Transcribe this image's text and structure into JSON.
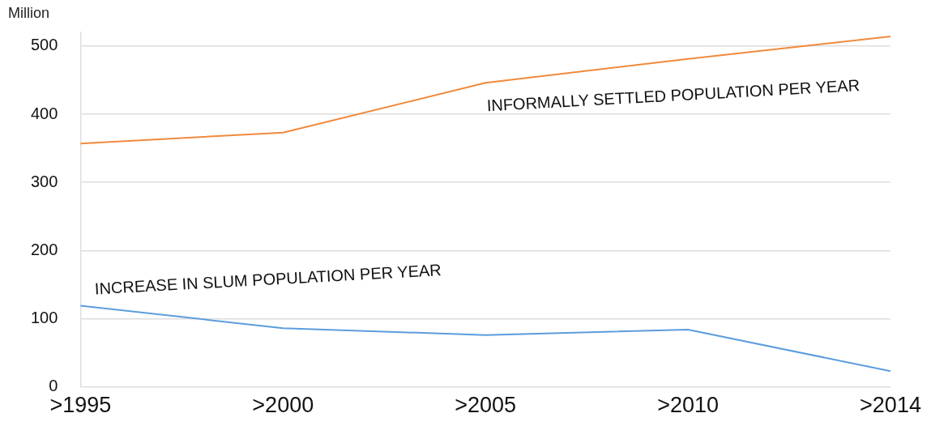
{
  "chart_data": {
    "type": "line",
    "ylabel": "Million",
    "categories": [
      ">1995",
      ">2000",
      ">2005",
      ">2010",
      ">2014"
    ],
    "series": [
      {
        "name": "INFORMALLY SETTLED POPULATION PER YEAR",
        "color": "#f08a3c",
        "values": [
          357,
          373,
          446,
          481,
          514
        ]
      },
      {
        "name": "INCREASE IN SLUM POPULATION PER YEAR",
        "color": "#5b9ddd",
        "values": [
          119,
          86,
          76,
          84,
          23
        ]
      }
    ],
    "ylim": [
      0,
      520
    ],
    "yticks": [
      0,
      100,
      200,
      300,
      400,
      500
    ],
    "grid": "y",
    "legend": false,
    "marker": "none",
    "line_style": "solid"
  }
}
